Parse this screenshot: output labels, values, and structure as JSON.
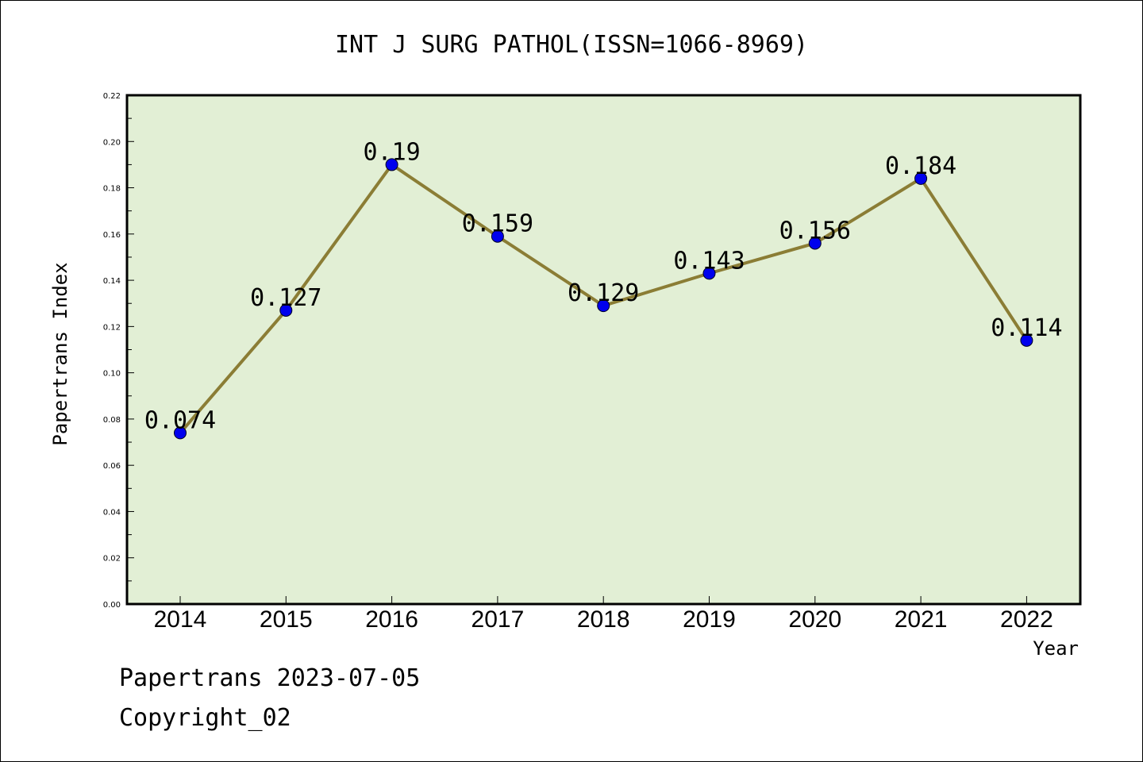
{
  "chart_data": {
    "type": "line",
    "title": "INT J SURG PATHOL(ISSN=1066-8969)",
    "xlabel": "Year",
    "ylabel": "Papertrans Index",
    "categories": [
      "2014",
      "2015",
      "2016",
      "2017",
      "2018",
      "2019",
      "2020",
      "2021",
      "2022"
    ],
    "values": [
      0.074,
      0.127,
      0.19,
      0.159,
      0.129,
      0.143,
      0.156,
      0.184,
      0.114
    ],
    "data_labels": [
      "0.074",
      "0.127",
      "0.19",
      "0.159",
      "0.129",
      "0.143",
      "0.156",
      "0.184",
      "0.114"
    ],
    "ylim": [
      0,
      0.22
    ],
    "yticks": [
      "0.00",
      "0.02",
      "0.04",
      "0.06",
      "0.08",
      "0.10",
      "0.12",
      "0.14",
      "0.16",
      "0.18",
      "0.20",
      "0.22"
    ],
    "grid": false,
    "legend": "none",
    "colors": {
      "plot_background": "#e2efd5",
      "line": "#8b7d35",
      "marker": "#0000ee"
    }
  },
  "footer": {
    "line1": "Papertrans 2023-07-05",
    "line2": "Copyright_02"
  }
}
